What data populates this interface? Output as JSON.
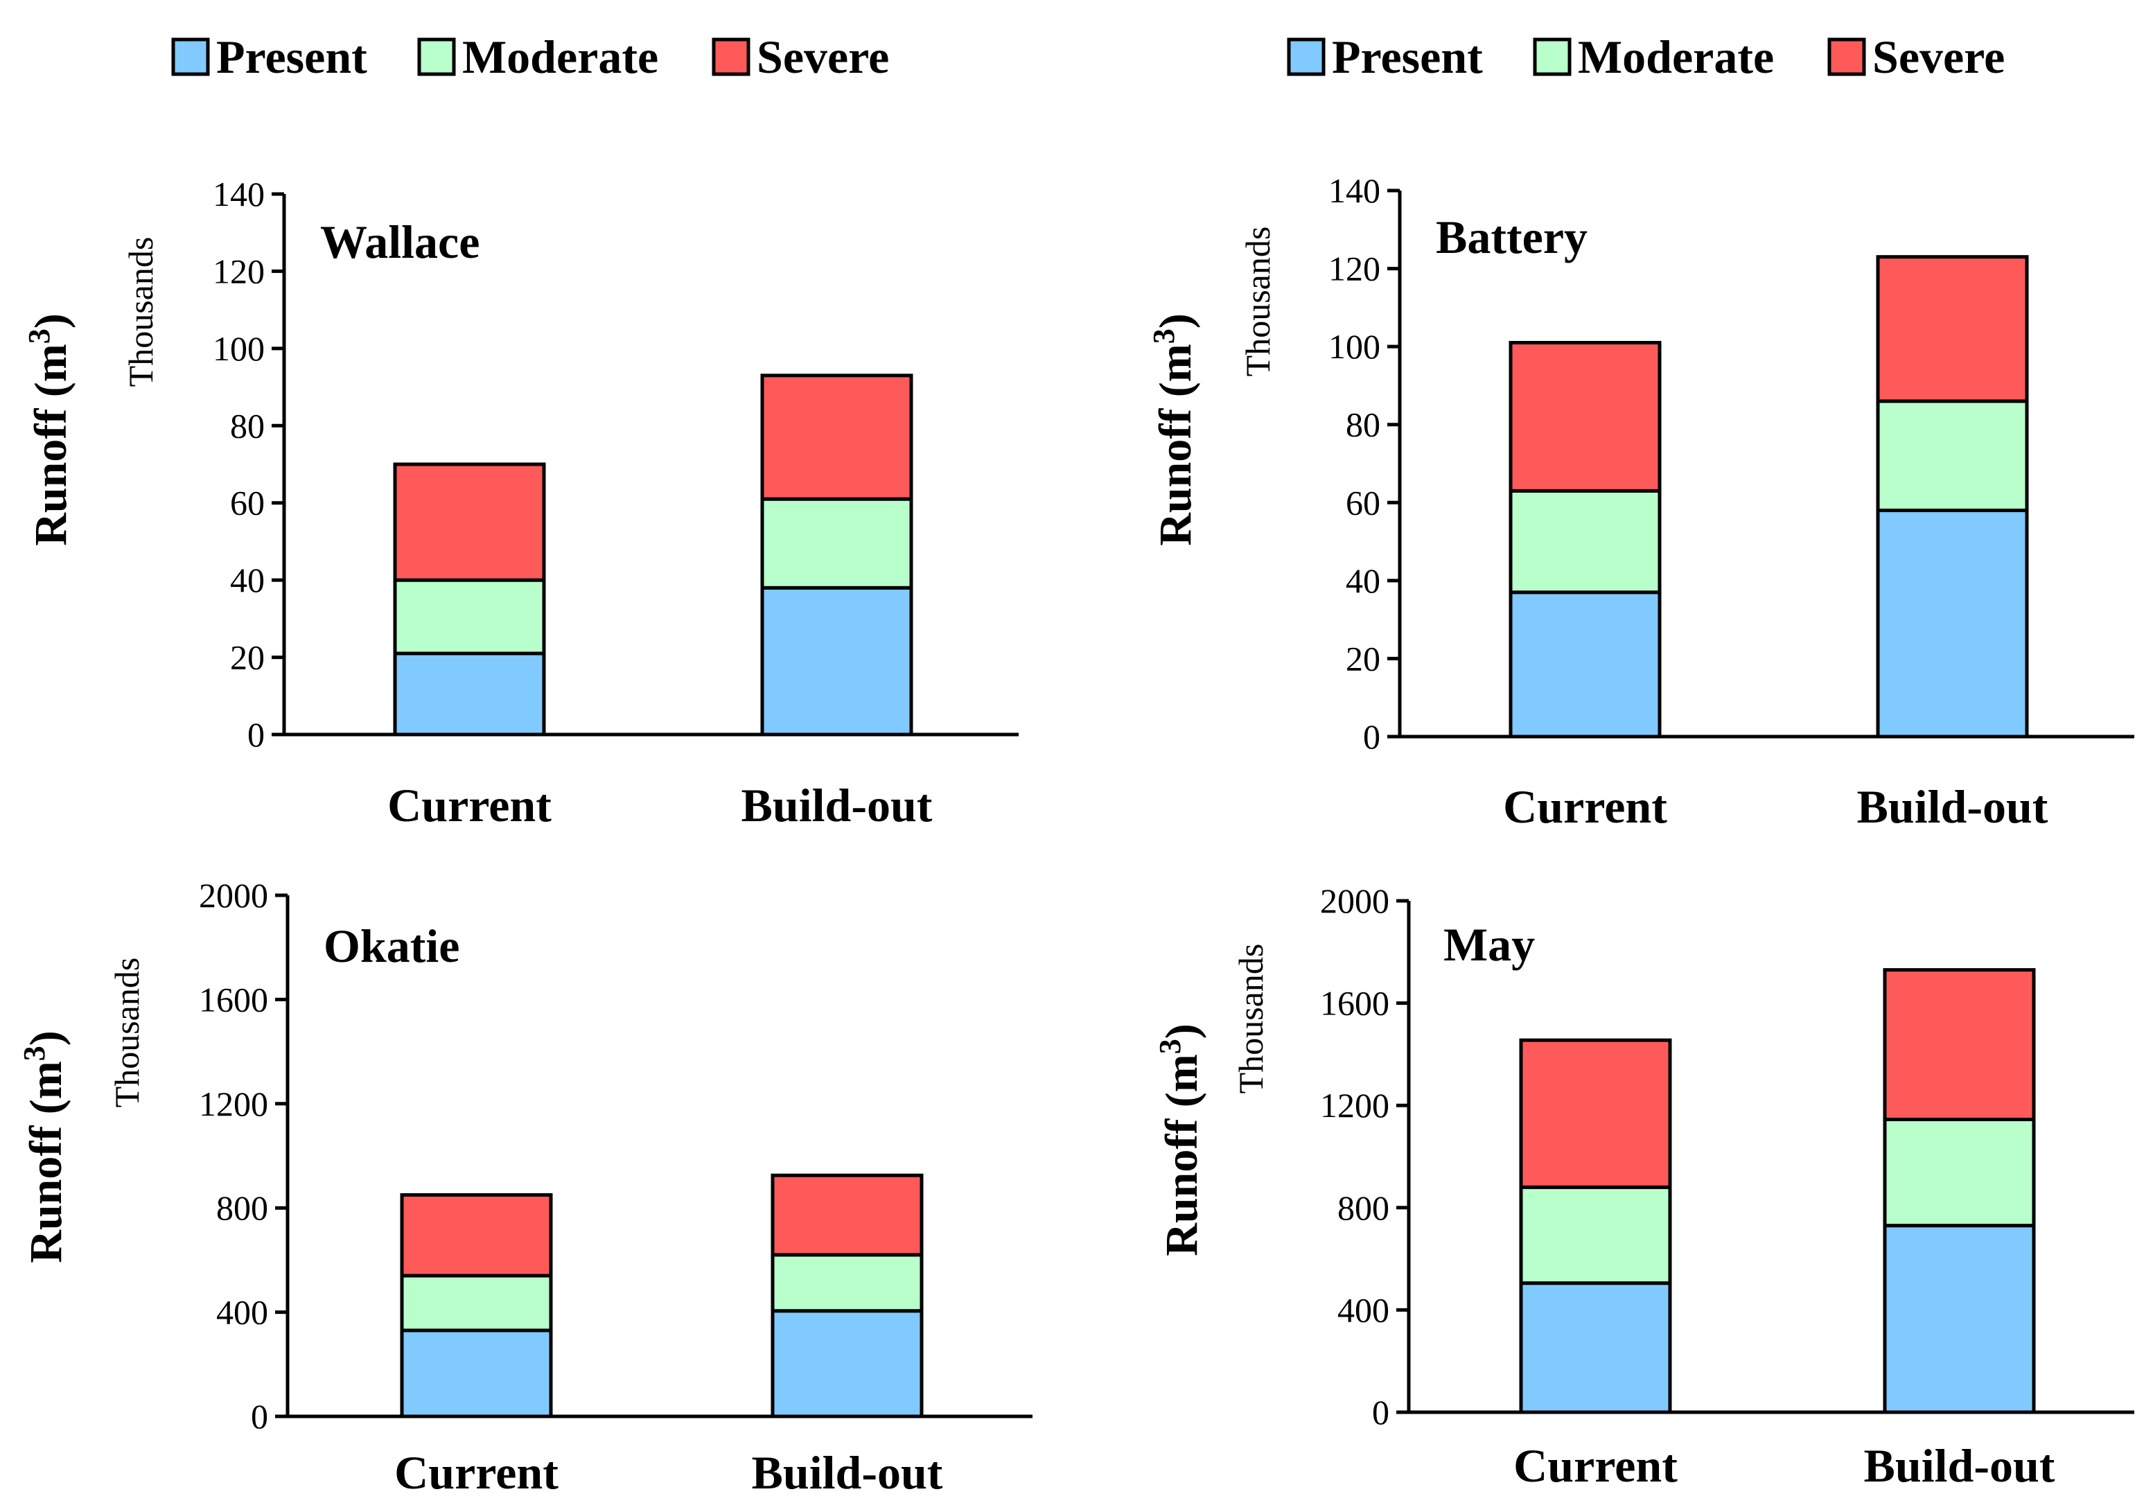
{
  "legends": [
    {
      "items": [
        {
          "label": "Present",
          "color": "#80CAFF"
        },
        {
          "label": "Moderate",
          "color": "#B8FFCC"
        },
        {
          "label": "Severe",
          "color": "#FF5A5A"
        }
      ]
    },
    {
      "items": [
        {
          "label": "Present",
          "color": "#80CAFF"
        },
        {
          "label": "Moderate",
          "color": "#B8FFCC"
        },
        {
          "label": "Severe",
          "color": "#FF5A5A"
        }
      ]
    }
  ],
  "chart_data": [
    {
      "type": "bar",
      "stacked": true,
      "title": "Wallace",
      "categories": [
        "Current",
        "Build-out"
      ],
      "ylabel": "Runoff  (m",
      "ylabel_superscript": "3",
      "ylabel_suffix": ")",
      "yunit": "Thousands",
      "ylim": [
        0,
        140
      ],
      "yticks": [
        0,
        20,
        40,
        60,
        80,
        100,
        120,
        140
      ],
      "ytick_labels": [
        "0",
        "20",
        "40",
        "60",
        "80",
        "100",
        "120",
        "140"
      ],
      "series": [
        {
          "name": "Present",
          "color": "#80CAFF",
          "values": [
            21,
            38
          ]
        },
        {
          "name": "Moderate",
          "color": "#B8FFCC",
          "values": [
            19,
            23
          ]
        },
        {
          "name": "Severe",
          "color": "#FF5A5A",
          "values": [
            30,
            32
          ]
        }
      ]
    },
    {
      "type": "bar",
      "stacked": true,
      "title": "Battery",
      "categories": [
        "Current",
        "Build-out"
      ],
      "ylabel": "Runoff  (m",
      "ylabel_superscript": "3",
      "ylabel_suffix": ")",
      "yunit": "Thousands",
      "ylim": [
        0,
        140
      ],
      "yticks": [
        0,
        20,
        40,
        60,
        80,
        100,
        120,
        140
      ],
      "ytick_labels": [
        "0",
        "20",
        "40",
        "60",
        "80",
        "100",
        "120",
        "140"
      ],
      "series": [
        {
          "name": "Present",
          "color": "#80CAFF",
          "values": [
            37,
            58
          ]
        },
        {
          "name": "Moderate",
          "color": "#B8FFCC",
          "values": [
            26,
            28
          ]
        },
        {
          "name": "Severe",
          "color": "#FF5A5A",
          "values": [
            38,
            37
          ]
        }
      ]
    },
    {
      "type": "bar",
      "stacked": true,
      "title": "Okatie",
      "categories": [
        "Current",
        "Build-out"
      ],
      "ylabel": "Runoff  (m",
      "ylabel_superscript": "3",
      "ylabel_suffix": ")",
      "yunit": "Thousands",
      "ylim": [
        0,
        2000
      ],
      "yticks": [
        0,
        400,
        800,
        1200,
        1600,
        2000
      ],
      "ytick_labels": [
        "0",
        "400",
        "800",
        "1200",
        "1600",
        "2000"
      ],
      "series": [
        {
          "name": "Present",
          "color": "#80CAFF",
          "values": [
            330,
            405
          ]
        },
        {
          "name": "Moderate",
          "color": "#B8FFCC",
          "values": [
            210,
            215
          ]
        },
        {
          "name": "Severe",
          "color": "#FF5A5A",
          "values": [
            310,
            305
          ]
        }
      ]
    },
    {
      "type": "bar",
      "stacked": true,
      "title": "May",
      "categories": [
        "Current",
        "Build-out"
      ],
      "ylabel": "Runoff  (m",
      "ylabel_superscript": "3",
      "ylabel_suffix": ")",
      "yunit": "Thousands",
      "ylim": [
        0,
        2000
      ],
      "yticks": [
        0,
        400,
        800,
        1200,
        1600,
        2000
      ],
      "ytick_labels": [
        "0",
        "400",
        "800",
        "1200",
        "1600",
        "2000"
      ],
      "series": [
        {
          "name": "Present",
          "color": "#80CAFF",
          "values": [
            505,
            730
          ]
        },
        {
          "name": "Moderate",
          "color": "#B8FFCC",
          "values": [
            375,
            415
          ]
        },
        {
          "name": "Severe",
          "color": "#FF5A5A",
          "values": [
            575,
            585
          ]
        }
      ]
    }
  ]
}
